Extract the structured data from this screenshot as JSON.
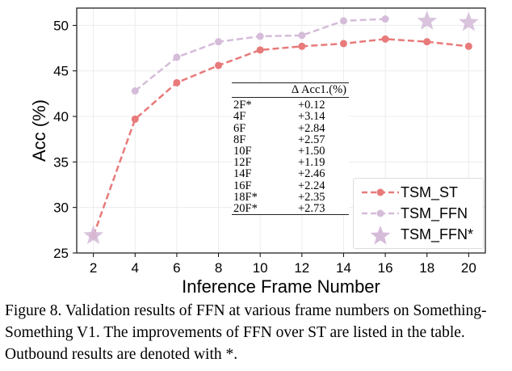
{
  "chart_data": {
    "type": "line",
    "xlabel": "Inference Frame Number",
    "ylabel": "Acc (%)",
    "x_ticks": [
      2,
      4,
      6,
      8,
      10,
      12,
      14,
      16,
      18,
      20
    ],
    "y_ticks": [
      25,
      30,
      35,
      40,
      45,
      50
    ],
    "xlim": [
      1.2,
      20.8
    ],
    "ylim": [
      25,
      51.9
    ],
    "grid": true,
    "legend_position": "bottom-right",
    "series": [
      {
        "name": "TSM_ST",
        "color": "#e87a7a",
        "style": "dashed-circle",
        "x": [
          2,
          4,
          6,
          8,
          10,
          12,
          14,
          16,
          18,
          20
        ],
        "y": [
          26.9,
          39.7,
          43.7,
          45.6,
          47.3,
          47.7,
          48.0,
          48.5,
          48.2,
          47.7
        ]
      },
      {
        "name": "TSM_FFN",
        "color": "#d5bcd9",
        "style": "dashed-circle",
        "x": [
          4,
          6,
          8,
          10,
          12,
          14,
          16
        ],
        "y": [
          42.8,
          46.5,
          48.2,
          48.8,
          48.9,
          50.5,
          50.7
        ]
      },
      {
        "name": "TSM_FFN*",
        "color": "#d5bcd9",
        "style": "star",
        "x": [
          2,
          18,
          20
        ],
        "y": [
          27.0,
          50.55,
          50.4
        ]
      }
    ],
    "table": {
      "header": "Δ Acc1.(%)",
      "rows": [
        [
          "2F*",
          "+0.12"
        ],
        [
          "4F",
          "+3.14"
        ],
        [
          "6F",
          "+2.84"
        ],
        [
          "8F",
          "+2.57"
        ],
        [
          "10F",
          "+1.50"
        ],
        [
          "12F",
          "+1.19"
        ],
        [
          "14F",
          "+2.46"
        ],
        [
          "16F",
          "+2.24"
        ],
        [
          "18F*",
          "+2.35"
        ],
        [
          "20F*",
          "+2.73"
        ]
      ]
    }
  },
  "caption": "Figure 8.  Validation results of FFN at various frame numbers on Something-Something V1. The improvements of FFN over ST are listed in the table. Outbound results are denoted with *."
}
